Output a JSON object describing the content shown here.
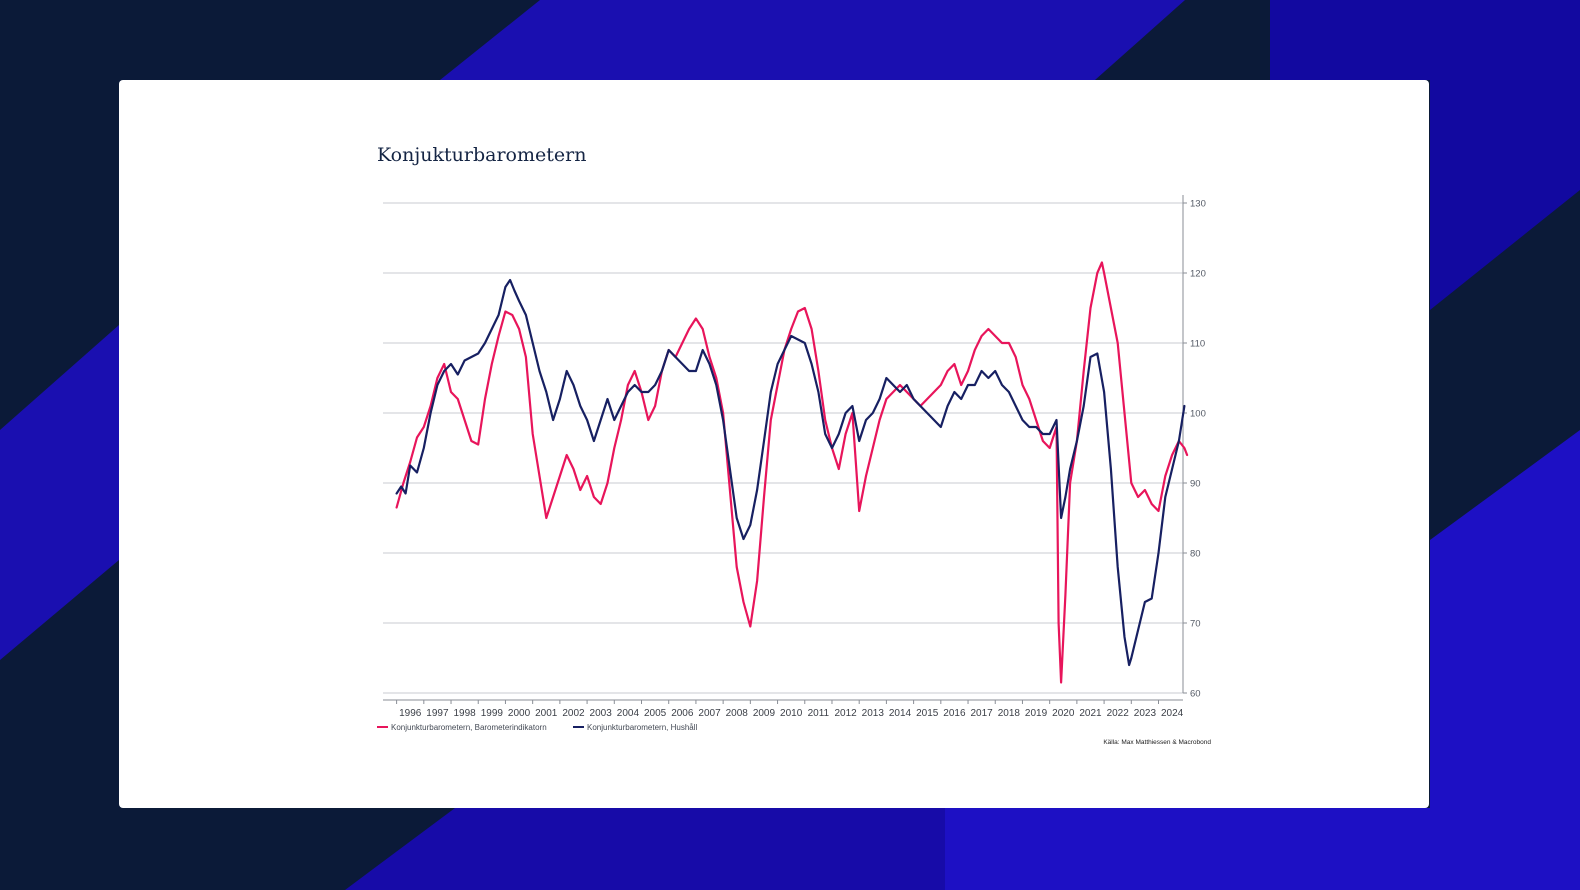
{
  "colors": {
    "background": "#0b1a38",
    "accent_blue": "#1a0fb0",
    "card": "#ffffff",
    "series_barometer": "#e8155b",
    "series_hushall": "#172062"
  },
  "chart_data": {
    "type": "line",
    "title": "Konjukturbarometern",
    "xlabel": "",
    "ylabel": "",
    "ylim": [
      60,
      130
    ],
    "xlim": [
      1995.5,
      2024.9
    ],
    "yticks": [
      60,
      70,
      80,
      90,
      100,
      110,
      120,
      130
    ],
    "xtick_labels": [
      "1996",
      "1997",
      "1998",
      "1999",
      "2000",
      "2001",
      "2002",
      "2003",
      "2004",
      "2005",
      "2006",
      "2007",
      "2008",
      "2009",
      "2010",
      "2011",
      "2012",
      "2013",
      "2014",
      "2015",
      "2016",
      "2017",
      "2018",
      "2019",
      "2020",
      "2021",
      "2022",
      "2023",
      "2024"
    ],
    "grid": "horizontal",
    "y_axis_side": "right",
    "legend_position": "bottom-left",
    "series": [
      {
        "name": "Konjunkturbarometern, Barometerindikatorn",
        "color": "#e8155b",
        "points": [
          [
            1996.0,
            86.5
          ],
          [
            1996.25,
            90
          ],
          [
            1996.5,
            93
          ],
          [
            1996.75,
            96.5
          ],
          [
            1997.0,
            98
          ],
          [
            1997.25,
            101
          ],
          [
            1997.5,
            105
          ],
          [
            1997.75,
            107
          ],
          [
            1998.0,
            103
          ],
          [
            1998.25,
            102
          ],
          [
            1998.5,
            99
          ],
          [
            1998.75,
            96
          ],
          [
            1999.0,
            95.5
          ],
          [
            1999.25,
            102
          ],
          [
            1999.5,
            107
          ],
          [
            1999.75,
            111
          ],
          [
            2000.0,
            114.5
          ],
          [
            2000.25,
            114
          ],
          [
            2000.5,
            112
          ],
          [
            2000.75,
            108
          ],
          [
            2001.0,
            97
          ],
          [
            2001.25,
            91
          ],
          [
            2001.5,
            85
          ],
          [
            2001.75,
            88
          ],
          [
            2002.0,
            91
          ],
          [
            2002.25,
            94
          ],
          [
            2002.5,
            92
          ],
          [
            2002.75,
            89
          ],
          [
            2003.0,
            91
          ],
          [
            2003.25,
            88
          ],
          [
            2003.5,
            87
          ],
          [
            2003.75,
            90
          ],
          [
            2004.0,
            95
          ],
          [
            2004.25,
            99
          ],
          [
            2004.5,
            104
          ],
          [
            2004.75,
            106
          ],
          [
            2005.0,
            103
          ],
          [
            2005.25,
            99
          ],
          [
            2005.5,
            101
          ],
          [
            2005.75,
            106
          ],
          [
            2006.0,
            109
          ],
          [
            2006.25,
            108
          ],
          [
            2006.5,
            110
          ],
          [
            2006.75,
            112
          ],
          [
            2007.0,
            113.5
          ],
          [
            2007.25,
            112
          ],
          [
            2007.5,
            108
          ],
          [
            2007.75,
            105
          ],
          [
            2008.0,
            100
          ],
          [
            2008.25,
            89
          ],
          [
            2008.5,
            78
          ],
          [
            2008.75,
            73
          ],
          [
            2009.0,
            69.5
          ],
          [
            2009.25,
            76
          ],
          [
            2009.5,
            88
          ],
          [
            2009.75,
            99
          ],
          [
            2010.0,
            104
          ],
          [
            2010.25,
            109
          ],
          [
            2010.5,
            112
          ],
          [
            2010.75,
            114.5
          ],
          [
            2011.0,
            115
          ],
          [
            2011.25,
            112
          ],
          [
            2011.5,
            106
          ],
          [
            2011.75,
            99
          ],
          [
            2012.0,
            95
          ],
          [
            2012.25,
            92
          ],
          [
            2012.5,
            97
          ],
          [
            2012.75,
            100
          ],
          [
            2013.0,
            86
          ],
          [
            2013.25,
            91
          ],
          [
            2013.5,
            95
          ],
          [
            2013.75,
            99
          ],
          [
            2014.0,
            102
          ],
          [
            2014.25,
            103
          ],
          [
            2014.5,
            104
          ],
          [
            2014.75,
            103
          ],
          [
            2015.0,
            102
          ],
          [
            2015.25,
            101
          ],
          [
            2015.5,
            102
          ],
          [
            2015.75,
            103
          ],
          [
            2016.0,
            104
          ],
          [
            2016.25,
            106
          ],
          [
            2016.5,
            107
          ],
          [
            2016.75,
            104
          ],
          [
            2017.0,
            106
          ],
          [
            2017.25,
            109
          ],
          [
            2017.5,
            111
          ],
          [
            2017.75,
            112
          ],
          [
            2018.0,
            111
          ],
          [
            2018.25,
            110
          ],
          [
            2018.5,
            110
          ],
          [
            2018.75,
            108
          ],
          [
            2019.0,
            104
          ],
          [
            2019.25,
            102
          ],
          [
            2019.5,
            99
          ],
          [
            2019.75,
            96
          ],
          [
            2020.0,
            95
          ],
          [
            2020.25,
            98
          ],
          [
            2020.33,
            70
          ],
          [
            2020.42,
            61.5
          ],
          [
            2020.58,
            74
          ],
          [
            2020.75,
            90
          ],
          [
            2021.0,
            96
          ],
          [
            2021.25,
            106
          ],
          [
            2021.5,
            115
          ],
          [
            2021.75,
            120
          ],
          [
            2021.92,
            121.5
          ],
          [
            2022.0,
            120
          ],
          [
            2022.25,
            115
          ],
          [
            2022.5,
            110
          ],
          [
            2022.75,
            100
          ],
          [
            2023.0,
            90
          ],
          [
            2023.25,
            88
          ],
          [
            2023.5,
            89
          ],
          [
            2023.75,
            87
          ],
          [
            2024.0,
            86
          ],
          [
            2024.25,
            91
          ],
          [
            2024.5,
            94
          ],
          [
            2024.75,
            96
          ],
          [
            2024.95,
            95
          ],
          [
            2025.05,
            94
          ]
        ]
      },
      {
        "name": "Konjunkturbarometern, Hushåll",
        "color": "#172062",
        "points": [
          [
            1996.0,
            88.5
          ],
          [
            1996.17,
            89.5
          ],
          [
            1996.33,
            88.5
          ],
          [
            1996.5,
            92.5
          ],
          [
            1996.75,
            91.5
          ],
          [
            1997.0,
            95
          ],
          [
            1997.25,
            100
          ],
          [
            1997.5,
            104
          ],
          [
            1997.75,
            106
          ],
          [
            1998.0,
            107
          ],
          [
            1998.25,
            105.5
          ],
          [
            1998.5,
            107.5
          ],
          [
            1998.75,
            108
          ],
          [
            1999.0,
            108.5
          ],
          [
            1999.25,
            110
          ],
          [
            1999.5,
            112
          ],
          [
            1999.75,
            114
          ],
          [
            2000.0,
            118
          ],
          [
            2000.17,
            119
          ],
          [
            2000.33,
            117.5
          ],
          [
            2000.5,
            116
          ],
          [
            2000.75,
            114
          ],
          [
            2001.0,
            110
          ],
          [
            2001.25,
            106
          ],
          [
            2001.5,
            103
          ],
          [
            2001.75,
            99
          ],
          [
            2002.0,
            102
          ],
          [
            2002.25,
            106
          ],
          [
            2002.5,
            104
          ],
          [
            2002.75,
            101
          ],
          [
            2003.0,
            99
          ],
          [
            2003.25,
            96
          ],
          [
            2003.5,
            99
          ],
          [
            2003.75,
            102
          ],
          [
            2004.0,
            99
          ],
          [
            2004.25,
            101
          ],
          [
            2004.5,
            103
          ],
          [
            2004.75,
            104
          ],
          [
            2005.0,
            103
          ],
          [
            2005.25,
            103
          ],
          [
            2005.5,
            104
          ],
          [
            2005.75,
            106
          ],
          [
            2006.0,
            109
          ],
          [
            2006.25,
            108
          ],
          [
            2006.5,
            107
          ],
          [
            2006.75,
            106
          ],
          [
            2007.0,
            106
          ],
          [
            2007.25,
            109
          ],
          [
            2007.5,
            107
          ],
          [
            2007.75,
            104
          ],
          [
            2008.0,
            99
          ],
          [
            2008.25,
            92
          ],
          [
            2008.5,
            85
          ],
          [
            2008.75,
            82
          ],
          [
            2009.0,
            84
          ],
          [
            2009.25,
            89
          ],
          [
            2009.5,
            96
          ],
          [
            2009.75,
            103
          ],
          [
            2010.0,
            107
          ],
          [
            2010.25,
            109
          ],
          [
            2010.5,
            111
          ],
          [
            2010.75,
            110.5
          ],
          [
            2011.0,
            110
          ],
          [
            2011.25,
            107
          ],
          [
            2011.5,
            103
          ],
          [
            2011.75,
            97
          ],
          [
            2012.0,
            95
          ],
          [
            2012.25,
            97
          ],
          [
            2012.5,
            100
          ],
          [
            2012.75,
            101
          ],
          [
            2013.0,
            96
          ],
          [
            2013.25,
            99
          ],
          [
            2013.5,
            100
          ],
          [
            2013.75,
            102
          ],
          [
            2014.0,
            105
          ],
          [
            2014.25,
            104
          ],
          [
            2014.5,
            103
          ],
          [
            2014.75,
            104
          ],
          [
            2015.0,
            102
          ],
          [
            2015.25,
            101
          ],
          [
            2015.5,
            100
          ],
          [
            2015.75,
            99
          ],
          [
            2016.0,
            98
          ],
          [
            2016.25,
            101
          ],
          [
            2016.5,
            103
          ],
          [
            2016.75,
            102
          ],
          [
            2017.0,
            104
          ],
          [
            2017.25,
            104
          ],
          [
            2017.5,
            106
          ],
          [
            2017.75,
            105
          ],
          [
            2018.0,
            106
          ],
          [
            2018.25,
            104
          ],
          [
            2018.5,
            103
          ],
          [
            2018.75,
            101
          ],
          [
            2019.0,
            99
          ],
          [
            2019.25,
            98
          ],
          [
            2019.5,
            98
          ],
          [
            2019.75,
            97
          ],
          [
            2020.0,
            97
          ],
          [
            2020.25,
            99
          ],
          [
            2020.42,
            85
          ],
          [
            2020.58,
            88
          ],
          [
            2020.75,
            92
          ],
          [
            2021.0,
            96
          ],
          [
            2021.25,
            101
          ],
          [
            2021.5,
            108
          ],
          [
            2021.75,
            108.5
          ],
          [
            2022.0,
            103
          ],
          [
            2022.25,
            92
          ],
          [
            2022.5,
            78
          ],
          [
            2022.75,
            68
          ],
          [
            2022.92,
            64
          ],
          [
            2023.0,
            65
          ],
          [
            2023.25,
            69
          ],
          [
            2023.5,
            73
          ],
          [
            2023.75,
            73.5
          ],
          [
            2024.0,
            80
          ],
          [
            2024.25,
            88
          ],
          [
            2024.5,
            92
          ],
          [
            2024.75,
            96
          ],
          [
            2024.95,
            101
          ]
        ]
      }
    ],
    "source_text": "Källa: Max Matthiessen & Macrobond"
  }
}
